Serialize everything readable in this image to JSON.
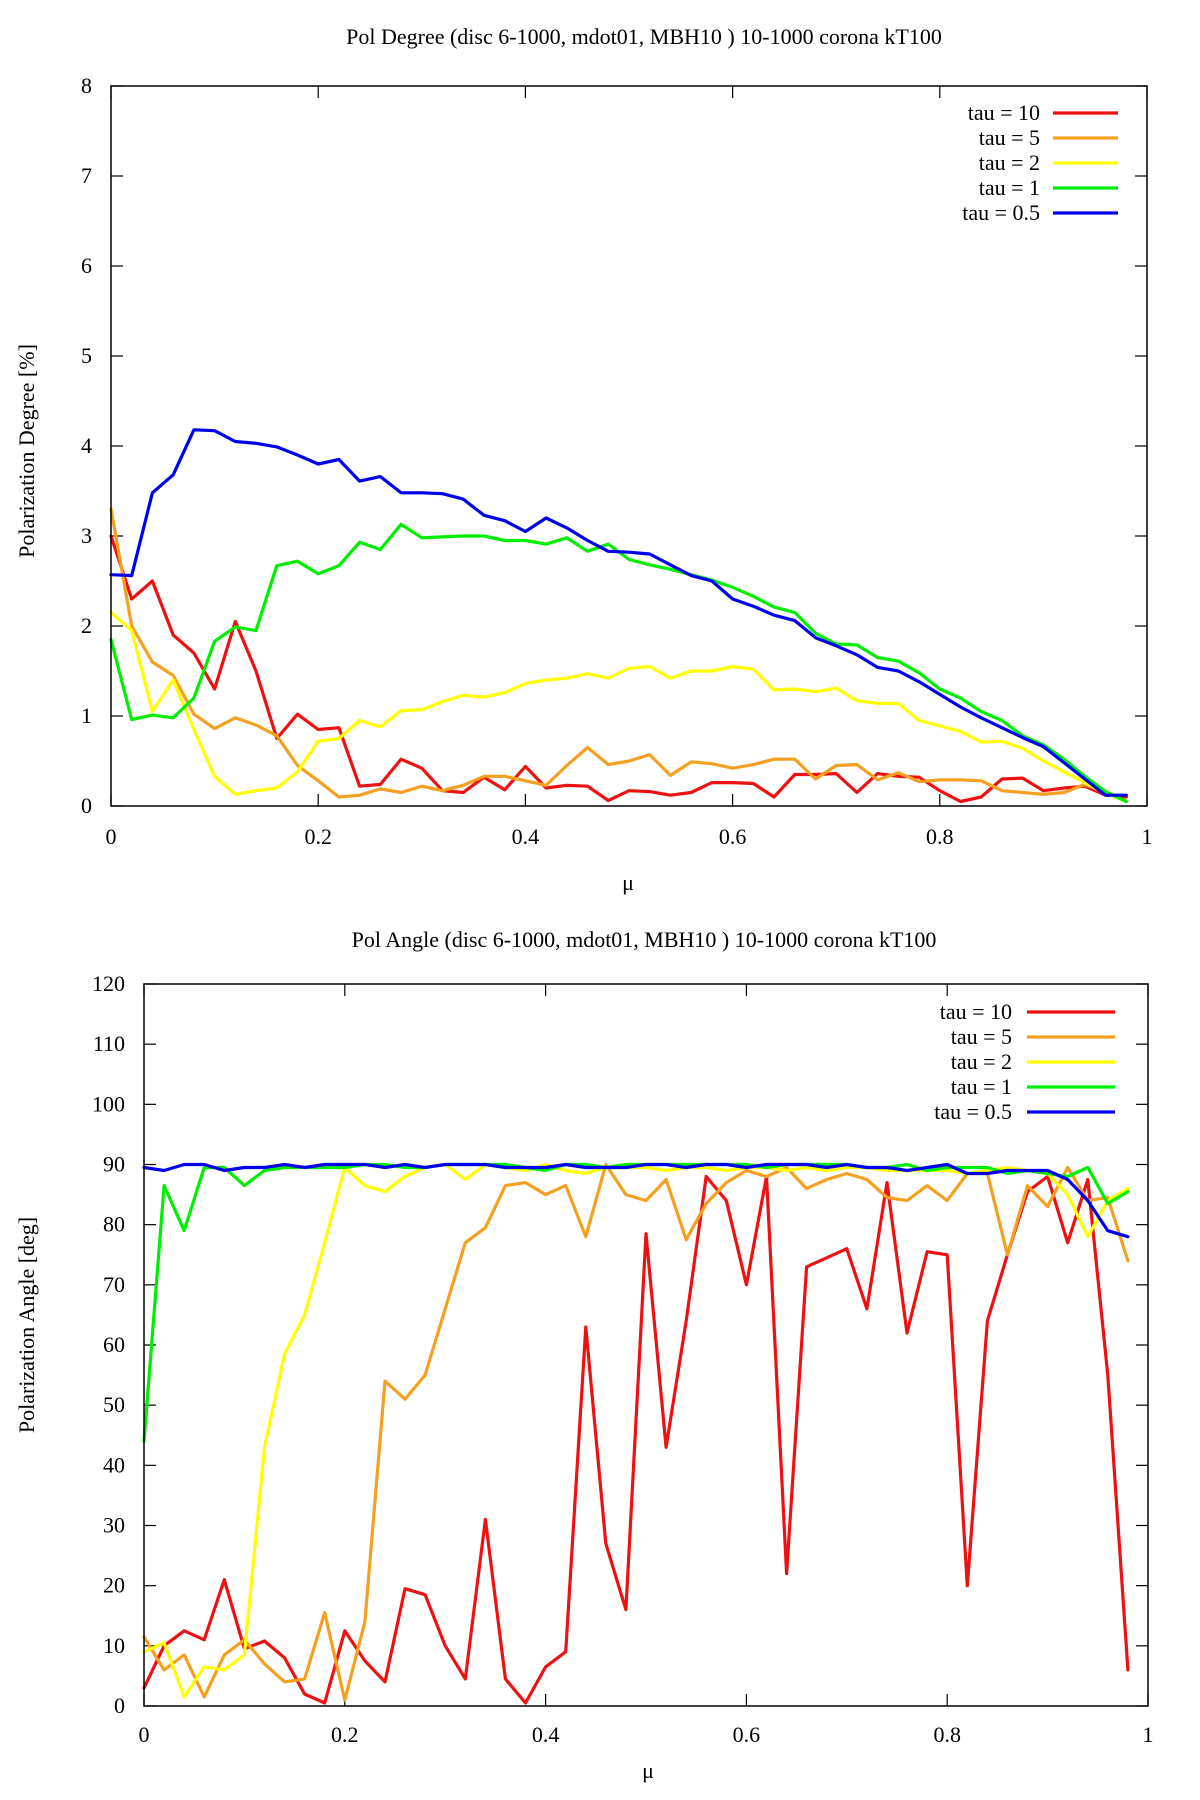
{
  "colors": {
    "tau10": "#ee1111",
    "tau5": "#f5a020",
    "tau2": "#ffff00",
    "tau1": "#00ee00",
    "tau05": "#0000ee"
  },
  "chart_data": [
    {
      "type": "line",
      "title": "Pol Degree (disc 6-1000, mdot01, MBH10 ) 10-1000 corona kT100",
      "xlabel": "μ",
      "ylabel": "Polarization Degree [%]",
      "xlim": [
        0,
        1
      ],
      "ylim": [
        0,
        8
      ],
      "xticks": [
        0,
        0.2,
        0.4,
        0.6,
        0.8,
        1
      ],
      "xtick_labels": [
        "0",
        "0.2",
        "0.4",
        "0.6",
        "0.8",
        "1"
      ],
      "yticks": [
        0,
        1,
        2,
        3,
        4,
        5,
        6,
        7,
        8
      ],
      "ytick_labels": [
        "0",
        "1",
        "2",
        "3",
        "4",
        "5",
        "6",
        "7",
        "8"
      ],
      "legend_position": "top-right",
      "x": [
        0,
        0.02,
        0.04,
        0.06,
        0.08,
        0.1,
        0.12,
        0.14,
        0.16,
        0.18,
        0.2,
        0.22,
        0.24,
        0.26,
        0.28,
        0.3,
        0.32,
        0.34,
        0.36,
        0.38,
        0.4,
        0.42,
        0.44,
        0.46,
        0.48,
        0.5,
        0.52,
        0.54,
        0.56,
        0.58,
        0.6,
        0.62,
        0.64,
        0.66,
        0.68,
        0.7,
        0.72,
        0.74,
        0.76,
        0.78,
        0.8,
        0.82,
        0.84,
        0.86,
        0.88,
        0.9,
        0.92,
        0.94,
        0.96,
        0.98
      ],
      "series": [
        {
          "name": "tau = 10",
          "color": "#ee1111",
          "values": [
            3.0,
            2.3,
            2.5,
            1.9,
            1.7,
            1.3,
            2.05,
            1.5,
            0.75,
            1.02,
            0.85,
            0.87,
            0.22,
            0.24,
            0.52,
            0.42,
            0.17,
            0.15,
            0.32,
            0.18,
            0.44,
            0.2,
            0.23,
            0.22,
            0.06,
            0.17,
            0.16,
            0.12,
            0.15,
            0.26,
            0.26,
            0.25,
            0.1,
            0.35,
            0.35,
            0.36,
            0.15,
            0.36,
            0.33,
            0.32,
            0.17,
            0.05,
            0.1,
            0.3,
            0.31,
            0.17,
            0.2,
            0.22,
            0.12,
            0.1
          ]
        },
        {
          "name": "tau = 5",
          "color": "#f5a020",
          "values": [
            3.3,
            2.0,
            1.6,
            1.45,
            1.02,
            0.86,
            0.98,
            0.9,
            0.78,
            0.45,
            0.28,
            0.1,
            0.12,
            0.19,
            0.15,
            0.22,
            0.17,
            0.23,
            0.33,
            0.33,
            0.28,
            0.23,
            0.45,
            0.65,
            0.46,
            0.5,
            0.57,
            0.34,
            0.49,
            0.47,
            0.42,
            0.46,
            0.52,
            0.52,
            0.3,
            0.45,
            0.46,
            0.29,
            0.37,
            0.27,
            0.29,
            0.29,
            0.28,
            0.17,
            0.15,
            0.13,
            0.15,
            0.24,
            0.15,
            0.05
          ]
        },
        {
          "name": "tau = 2",
          "color": "#ffff00",
          "values": [
            2.15,
            1.95,
            1.05,
            1.4,
            0.85,
            0.33,
            0.13,
            0.17,
            0.2,
            0.38,
            0.72,
            0.75,
            0.95,
            0.88,
            1.06,
            1.07,
            1.16,
            1.23,
            1.21,
            1.26,
            1.36,
            1.4,
            1.42,
            1.47,
            1.42,
            1.53,
            1.55,
            1.42,
            1.5,
            1.5,
            1.55,
            1.52,
            1.29,
            1.3,
            1.27,
            1.31,
            1.17,
            1.14,
            1.14,
            0.95,
            0.89,
            0.83,
            0.71,
            0.72,
            0.64,
            0.5,
            0.38,
            0.26,
            0.14,
            0.05
          ]
        },
        {
          "name": "tau = 1",
          "color": "#00ee00",
          "values": [
            1.85,
            0.96,
            1.01,
            0.98,
            1.2,
            1.83,
            1.99,
            1.95,
            2.67,
            2.72,
            2.58,
            2.67,
            2.93,
            2.85,
            3.13,
            2.98,
            2.99,
            3.0,
            3.0,
            2.95,
            2.95,
            2.91,
            2.98,
            2.83,
            2.91,
            2.74,
            2.68,
            2.63,
            2.57,
            2.51,
            2.43,
            2.33,
            2.21,
            2.15,
            1.92,
            1.8,
            1.79,
            1.65,
            1.61,
            1.48,
            1.3,
            1.2,
            1.05,
            0.95,
            0.78,
            0.68,
            0.52,
            0.33,
            0.16,
            0.05
          ]
        },
        {
          "name": "tau = 0.5",
          "color": "#0000ee",
          "values": [
            2.57,
            2.56,
            3.48,
            3.68,
            4.18,
            4.17,
            4.05,
            4.03,
            3.99,
            3.9,
            3.8,
            3.85,
            3.61,
            3.66,
            3.48,
            3.48,
            3.47,
            3.41,
            3.23,
            3.17,
            3.05,
            3.2,
            3.09,
            2.95,
            2.83,
            2.82,
            2.8,
            2.68,
            2.56,
            2.5,
            2.3,
            2.22,
            2.12,
            2.06,
            1.87,
            1.78,
            1.68,
            1.54,
            1.5,
            1.38,
            1.24,
            1.1,
            0.98,
            0.87,
            0.76,
            0.66,
            0.48,
            0.3,
            0.12,
            0.12
          ]
        }
      ]
    },
    {
      "type": "line",
      "title": "Pol Angle (disc 6-1000, mdot01, MBH10 ) 10-1000 corona kT100",
      "xlabel": "μ",
      "ylabel": "Polarization Angle [deg]",
      "xlim": [
        0,
        1
      ],
      "ylim": [
        0,
        120
      ],
      "xticks": [
        0,
        0.2,
        0.4,
        0.6,
        0.8,
        1
      ],
      "xtick_labels": [
        "0",
        "0.2",
        "0.4",
        "0.6",
        "0.8",
        "1"
      ],
      "yticks": [
        0,
        10,
        20,
        30,
        40,
        50,
        60,
        70,
        80,
        90,
        100,
        110,
        120
      ],
      "ytick_labels": [
        "0",
        "10",
        "20",
        "30",
        "40",
        "50",
        "60",
        "70",
        "80",
        "90",
        "100",
        "110",
        "120"
      ],
      "legend_position": "top-right",
      "x": [
        0,
        0.02,
        0.04,
        0.06,
        0.08,
        0.1,
        0.12,
        0.14,
        0.16,
        0.18,
        0.2,
        0.22,
        0.24,
        0.26,
        0.28,
        0.3,
        0.32,
        0.34,
        0.36,
        0.38,
        0.4,
        0.42,
        0.44,
        0.46,
        0.48,
        0.5,
        0.52,
        0.54,
        0.56,
        0.58,
        0.6,
        0.62,
        0.64,
        0.66,
        0.68,
        0.7,
        0.72,
        0.74,
        0.76,
        0.78,
        0.8,
        0.82,
        0.84,
        0.86,
        0.88,
        0.9,
        0.92,
        0.94,
        0.96,
        0.98
      ],
      "series": [
        {
          "name": "tau = 10",
          "color": "#ee1111",
          "values": [
            3,
            10,
            12.5,
            11,
            21,
            9.5,
            10.8,
            8,
            2,
            0.5,
            12.5,
            7.5,
            4,
            19.5,
            18.5,
            10,
            4.5,
            31,
            4.5,
            0.5,
            6.5,
            9,
            63,
            27,
            16,
            78.5,
            43,
            64,
            88,
            84,
            70,
            88,
            22,
            73,
            74.5,
            76,
            66,
            87,
            62,
            75.5,
            75,
            20,
            64,
            75,
            85.5,
            88,
            77,
            87.5,
            55,
            6
          ]
        },
        {
          "name": "tau = 5",
          "color": "#f5a020",
          "values": [
            11.5,
            6,
            8.5,
            1.5,
            8.5,
            11,
            7,
            4,
            4.5,
            15.5,
            1,
            14,
            54,
            51,
            55,
            66,
            77,
            79.5,
            86.5,
            87,
            85,
            86.5,
            78,
            90,
            85,
            84,
            87.5,
            77.5,
            83.5,
            87,
            89,
            88,
            89.5,
            86,
            87.5,
            88.5,
            87.5,
            84.5,
            84,
            86.5,
            84,
            88.5,
            88.5,
            75,
            86.5,
            83,
            89.5,
            84,
            84.5,
            74
          ]
        },
        {
          "name": "tau = 2",
          "color": "#ffff00",
          "values": [
            9,
            10.5,
            1.5,
            6.5,
            6,
            8.5,
            43,
            58.5,
            65,
            77,
            89.5,
            86.5,
            85.5,
            88,
            89.5,
            90,
            87.5,
            90,
            89.5,
            89,
            90,
            89,
            88.5,
            89.5,
            89.5,
            89.5,
            89,
            89.5,
            89.5,
            89,
            89.5,
            89.5,
            89,
            89.5,
            89,
            89.5,
            89.5,
            89,
            89,
            89,
            89,
            88.5,
            89,
            89.5,
            89,
            88.5,
            85,
            78,
            84,
            86
          ]
        },
        {
          "name": "tau = 1",
          "color": "#00ee00",
          "values": [
            44,
            86.5,
            79,
            89.5,
            89.5,
            86.5,
            89,
            89.5,
            89.5,
            89.5,
            89.5,
            90,
            90,
            89.5,
            89.5,
            90,
            90,
            90,
            90,
            89.5,
            89,
            90,
            90,
            89.5,
            90,
            90,
            90,
            90,
            90,
            90,
            90,
            89.5,
            90,
            90,
            90,
            90,
            89.5,
            89.5,
            90,
            89,
            89.5,
            89.5,
            89.5,
            88.5,
            89,
            88.5,
            88,
            89.5,
            83.5,
            85.5
          ]
        },
        {
          "name": "tau = 0.5",
          "color": "#0000ee",
          "values": [
            89.5,
            89,
            90,
            90,
            89,
            89.5,
            89.5,
            90,
            89.5,
            90,
            90,
            90,
            89.5,
            90,
            89.5,
            90,
            90,
            90,
            89.5,
            89.5,
            89.5,
            90,
            89.5,
            89.5,
            89.5,
            90,
            90,
            89.5,
            90,
            90,
            89.5,
            90,
            90,
            90,
            89.5,
            90,
            89.5,
            89.5,
            89,
            89.5,
            90,
            88.5,
            88.5,
            89,
            89,
            89,
            87.5,
            84,
            79,
            78
          ]
        }
      ]
    }
  ]
}
